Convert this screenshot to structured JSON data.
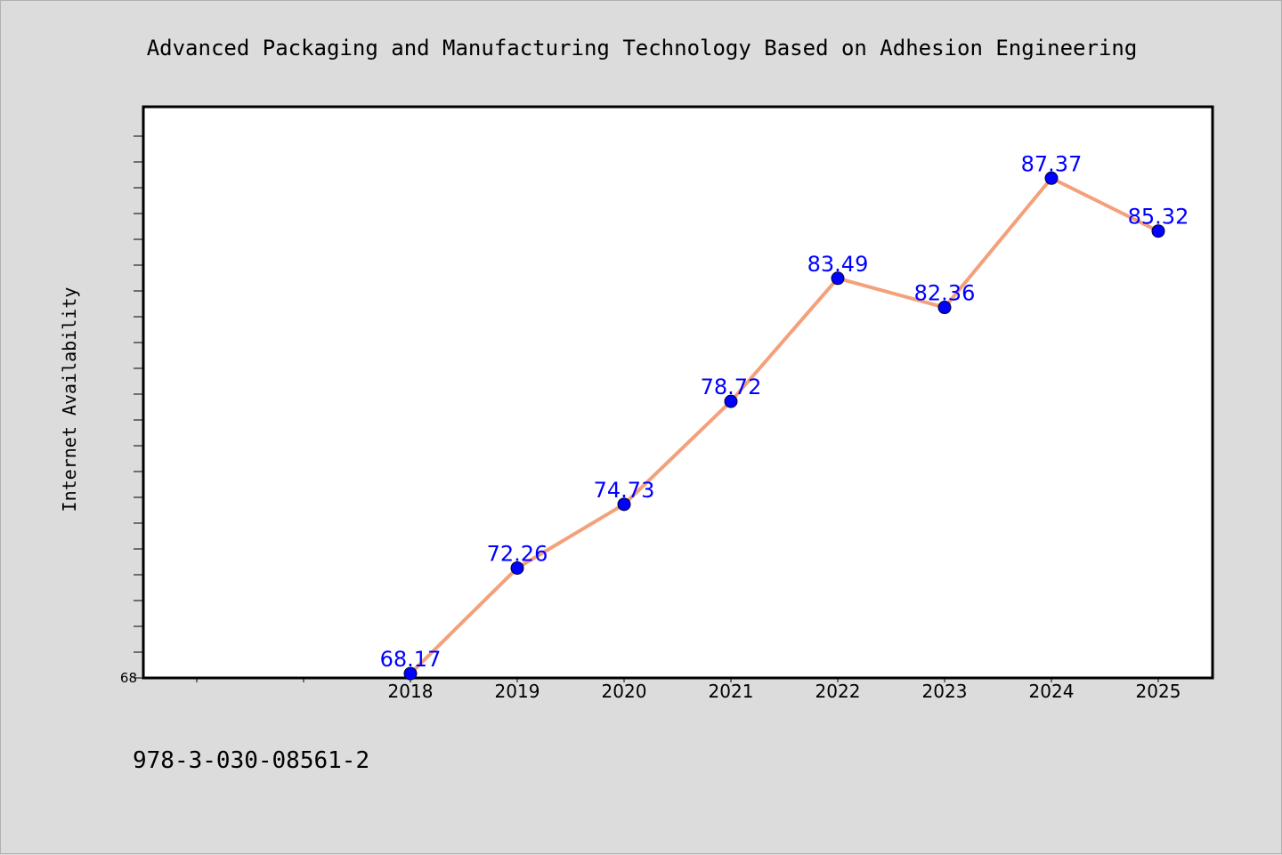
{
  "chart_data": {
    "type": "line",
    "title": "Advanced Packaging and Manufacturing Technology Based on Adhesion Engineering",
    "xlabel": "",
    "ylabel": "Internet Availability",
    "categories": [
      "2018",
      "2019",
      "2020",
      "2021",
      "2022",
      "2023",
      "2024",
      "2025"
    ],
    "values": [
      68.17,
      72.26,
      74.73,
      78.72,
      83.49,
      82.36,
      87.37,
      85.32
    ],
    "data_labels": [
      "68.17",
      "72.26",
      "74.73",
      "78.72",
      "83.49",
      "82.36",
      "87.37",
      "85.32"
    ],
    "ylim": [
      68,
      90
    ],
    "y_tick_labels": [
      "68"
    ],
    "line_color": "#f4a07a",
    "marker_color": "#0000ff",
    "label_color": "#0000ff",
    "grid": false,
    "legend": "none"
  },
  "footer": {
    "isbn": "978-3-030-08561-2"
  }
}
